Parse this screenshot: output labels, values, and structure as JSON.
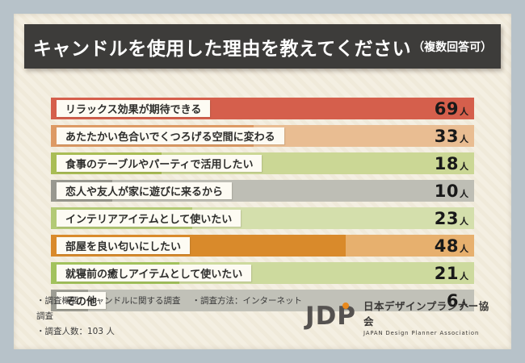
{
  "title": {
    "main": "キャンドルを使用した理由を教えてください",
    "suffix": "（複数回答可）"
  },
  "chart_data": {
    "type": "bar",
    "orientation": "horizontal",
    "unit": "人",
    "max_value": 69,
    "categories": [
      "リラックス効果が期待できる",
      "あたたかい色合いでくつろげる空間に変わる",
      "食事のテーブルやパーティで活用したい",
      "恋人や友人が家に遊びに来るから",
      "インテリアアイテムとして使いたい",
      "部屋を良い匂いにしたい",
      "就寝前の癒しアイテムとして使いたい",
      "その他"
    ],
    "values": [
      69,
      33,
      18,
      10,
      23,
      48,
      21,
      6
    ],
    "bar_colors": [
      "#d55f4c",
      "#dd9a64",
      "#a9bd55",
      "#98988f",
      "#b3ca76",
      "#d98a2b",
      "#a2c25d",
      "#9c9c93"
    ],
    "bar_light_colors": [
      "#e08a7a",
      "#e9bd92",
      "#cbd795",
      "#bebeb5",
      "#d4dfac",
      "#e7b06e",
      "#cdda9e",
      "#c1c1b8"
    ]
  },
  "footer": {
    "note_overview": "・調査概要：キャンドルに関する調査",
    "note_method": "・調査方法：インターネット調査",
    "note_people": "・調査人数：103 人",
    "logo": {
      "mark": "JDP",
      "org_jp": "日本デザインプランナー協会",
      "org_en": "JAPAN Design Planner Association"
    }
  },
  "colors": {
    "frame": "#b7c2c9",
    "paper": "#f4efe2",
    "title_bg": "#3d3c3a",
    "logo_accent": "#e8891d"
  }
}
